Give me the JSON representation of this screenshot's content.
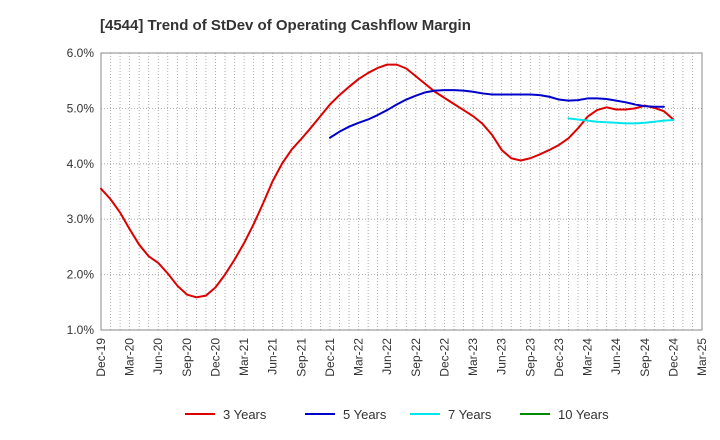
{
  "chart_data": {
    "type": "line",
    "title": "[4544]  Trend of StDev of Operating Cashflow Margin",
    "xlabel": "",
    "ylabel": "",
    "ylim": [
      1.0,
      6.0
    ],
    "y_ticks": [
      1.0,
      2.0,
      3.0,
      4.0,
      5.0,
      6.0
    ],
    "y_tick_labels": [
      "1.0%",
      "2.0%",
      "3.0%",
      "4.0%",
      "5.0%",
      "6.0%"
    ],
    "x_tick_labels": [
      "Dec-19",
      "Mar-20",
      "Jun-20",
      "Sep-20",
      "Dec-20",
      "Mar-21",
      "Jun-21",
      "Sep-21",
      "Dec-21",
      "Mar-22",
      "Jun-22",
      "Sep-22",
      "Dec-22",
      "Mar-23",
      "Jun-23",
      "Sep-23",
      "Dec-23",
      "Mar-24",
      "Jun-24",
      "Sep-24",
      "Dec-24",
      "Mar-25"
    ],
    "grid": true,
    "legend_position": "bottom",
    "series": [
      {
        "name": "3 Years",
        "color": "#dd0000",
        "start_index": 0,
        "values": [
          3.55,
          3.36,
          3.12,
          2.82,
          2.54,
          2.33,
          2.21,
          2.02,
          1.8,
          1.64,
          1.59,
          1.62,
          1.77,
          2.0,
          2.27,
          2.57,
          2.91,
          3.29,
          3.69,
          4.01,
          4.26,
          4.45,
          4.65,
          4.86,
          5.07,
          5.24,
          5.39,
          5.53,
          5.64,
          5.73,
          5.79,
          5.79,
          5.72,
          5.58,
          5.44,
          5.3,
          5.19,
          5.08,
          4.97,
          4.86,
          4.72,
          4.52,
          4.25,
          4.1,
          4.06,
          4.1,
          4.17,
          4.25,
          4.34,
          4.46,
          4.64,
          4.85,
          4.97,
          5.02,
          4.98,
          4.98,
          5.0,
          5.05,
          5.01,
          4.95,
          4.8
        ]
      },
      {
        "name": "5 Years",
        "color": "#0000cc",
        "start_index": 24,
        "values": [
          4.47,
          4.58,
          4.67,
          4.74,
          4.8,
          4.88,
          4.97,
          5.07,
          5.16,
          5.23,
          5.29,
          5.32,
          5.33,
          5.33,
          5.32,
          5.3,
          5.27,
          5.25,
          5.25,
          5.25,
          5.25,
          5.25,
          5.24,
          5.21,
          5.16,
          5.14,
          5.15,
          5.18,
          5.18,
          5.17,
          5.14,
          5.11,
          5.07,
          5.04,
          5.03,
          5.03
        ]
      },
      {
        "name": "7 Years",
        "color": "#00e5ee",
        "start_index": 49,
        "values": [
          4.82,
          4.8,
          4.78,
          4.76,
          4.75,
          4.74,
          4.73,
          4.73,
          4.74,
          4.76,
          4.78,
          4.79
        ]
      },
      {
        "name": "10 Years",
        "color": "#008800",
        "start_index": 60,
        "values": []
      }
    ]
  }
}
